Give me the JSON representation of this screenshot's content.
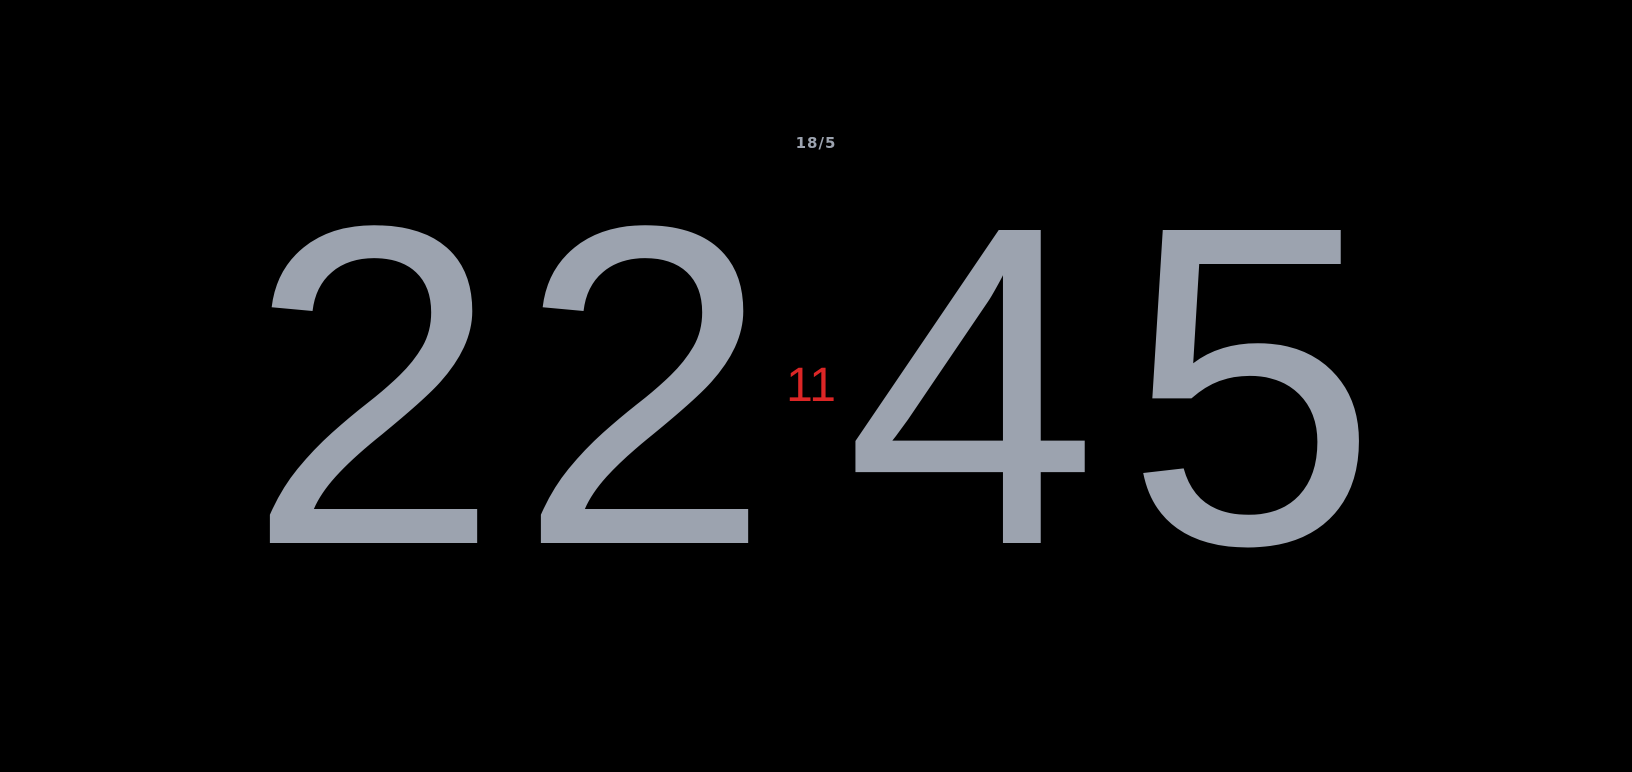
{
  "date": "18/5",
  "time": {
    "hour_tens": "2",
    "hour_ones": "2",
    "minute_tens": "4",
    "minute_ones": "5",
    "seconds": "11"
  },
  "colors": {
    "background": "#000000",
    "digits": "#9ca3af",
    "seconds": "#dc2626"
  }
}
